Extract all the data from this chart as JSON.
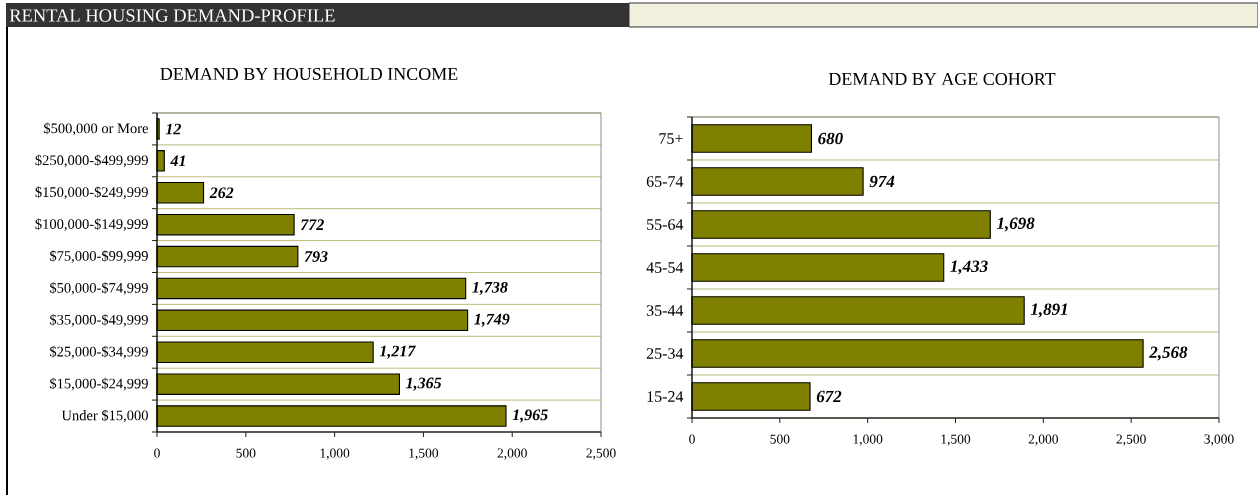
{
  "chart_data": [
    {
      "type": "other",
      "title": "RENTAL HOUSING DEMAND-PROFILE"
    },
    {
      "type": "bar",
      "orientation": "horizontal",
      "title": "DEMAND BY HOUSEHOLD INCOME",
      "categories": [
        "$500,000 or More",
        "$250,000-$499,999",
        "$150,000-$249,999",
        "$100,000-$149,999",
        "$75,000-$99,999",
        "$50,000-$74,999",
        "$35,000-$49,999",
        "$25,000-$34,999",
        "$15,000-$24,999",
        "Under $15,000"
      ],
      "values": [
        12,
        41,
        262,
        772,
        793,
        1738,
        1749,
        1217,
        1365,
        1965
      ],
      "value_labels": [
        "12",
        "41",
        "262",
        "772",
        "793",
        "1,738",
        "1,749",
        "1,217",
        "1,365",
        "1,965"
      ],
      "color": "#808000",
      "xlim": [
        0,
        2500
      ],
      "xticks": [
        0,
        500,
        {
          "value": 1000,
          "label": "1,000"
        },
        {
          "value": 1500,
          "label": "1,500"
        },
        {
          "value": 2000,
          "label": "2,000"
        },
        {
          "value": 2500,
          "label": "2,500"
        }
      ],
      "grid": "y"
    },
    {
      "type": "bar",
      "orientation": "horizontal",
      "title": "DEMAND BY AGE COHORT",
      "categories": [
        "75+",
        "65-74",
        "55-64",
        "45-54",
        "35-44",
        "25-34",
        "15-24"
      ],
      "values": [
        680,
        974,
        1698,
        1433,
        1891,
        2568,
        672
      ],
      "value_labels": [
        "680",
        "974",
        "1,698",
        "1,433",
        "1,891",
        "2,568",
        "672"
      ],
      "color": "#808000",
      "xlim": [
        0,
        3000
      ],
      "xticks": [
        0,
        500,
        {
          "value": 1000,
          "label": "1,000"
        },
        {
          "value": 1500,
          "label": "1,500"
        },
        {
          "value": 2000,
          "label": "2,000"
        },
        {
          "value": 2500,
          "label": "2,500"
        },
        {
          "value": 3000,
          "label": "3,000"
        }
      ],
      "grid": "y"
    }
  ]
}
